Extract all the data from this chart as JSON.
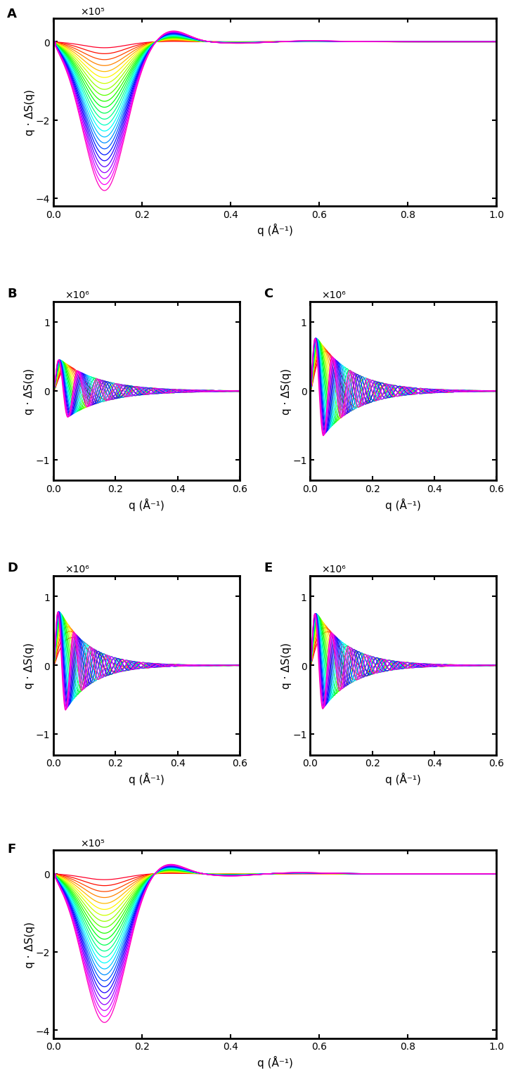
{
  "panel_A": {
    "label": "A",
    "xlabel": "q (Å⁻¹)",
    "ylabel": "q · ΔS(q)",
    "xlim": [
      0,
      1.0
    ],
    "ylim": [
      -4.2,
      0.6
    ],
    "yticks": [
      -4,
      -2,
      0
    ],
    "xticks": [
      0,
      0.2,
      0.4,
      0.6,
      0.8,
      1.0
    ],
    "scale_label": "×10⁵",
    "n_curves": 25
  },
  "panel_B": {
    "label": "B",
    "xlabel": "q (Å⁻¹)",
    "ylabel": "q · ΔS(q)",
    "xlim": [
      0,
      0.6
    ],
    "ylim": [
      -1.3,
      1.3
    ],
    "yticks": [
      -1,
      0,
      1
    ],
    "xticks": [
      0,
      0.2,
      0.4,
      0.6
    ],
    "scale_label": "×10⁶",
    "n_curves": 20
  },
  "panel_C": {
    "label": "C",
    "xlabel": "q (Å⁻¹)",
    "ylabel": "q · ΔS(q)",
    "xlim": [
      0,
      0.6
    ],
    "ylim": [
      -1.3,
      1.3
    ],
    "yticks": [
      -1,
      0,
      1
    ],
    "xticks": [
      0,
      0.2,
      0.4,
      0.6
    ],
    "scale_label": "×10⁶",
    "n_curves": 20
  },
  "panel_D": {
    "label": "D",
    "xlabel": "q (Å⁻¹)",
    "ylabel": "q · ΔS(q)",
    "xlim": [
      0,
      0.6
    ],
    "ylim": [
      -1.3,
      1.3
    ],
    "yticks": [
      -1,
      0,
      1
    ],
    "xticks": [
      0,
      0.2,
      0.4,
      0.6
    ],
    "scale_label": "×10⁶",
    "n_curves": 20
  },
  "panel_E": {
    "label": "E",
    "xlabel": "q (Å⁻¹)",
    "ylabel": "q · ΔS(q)",
    "xlim": [
      0,
      0.6
    ],
    "ylim": [
      -1.3,
      1.3
    ],
    "yticks": [
      -1,
      0,
      1
    ],
    "xticks": [
      0,
      0.2,
      0.4,
      0.6
    ],
    "scale_label": "×10⁶",
    "n_curves": 20
  },
  "panel_F": {
    "label": "F",
    "xlabel": "q (Å⁻¹)",
    "ylabel": "q · ΔS(q)",
    "xlim": [
      0,
      1.0
    ],
    "ylim": [
      -4.2,
      0.6
    ],
    "yticks": [
      -4,
      -2,
      0
    ],
    "xticks": [
      0,
      0.2,
      0.4,
      0.6,
      0.8,
      1.0
    ],
    "scale_label": "×10⁵",
    "n_curves": 25
  },
  "background_color": "#ffffff",
  "linewidth": 0.9,
  "label_fontsize": 11,
  "tick_fontsize": 10,
  "panel_label_fontsize": 13
}
